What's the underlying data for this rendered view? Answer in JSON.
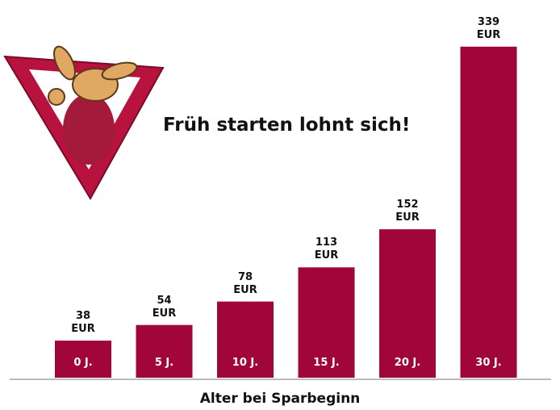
{
  "chart_data": {
    "type": "bar",
    "title": "Früh starten lohnt sich!",
    "x_label": "Alter bei Sparbeginn",
    "categories": [
      "0 J.",
      "5 J.",
      "10 J.",
      "15 J.",
      "20 J.",
      "30 J."
    ],
    "values": [
      38,
      54,
      78,
      113,
      152,
      339
    ],
    "value_labels": [
      "38\nEUR",
      "54\nEUR",
      "78\nEUR",
      "113\nEUR",
      "152\nEUR",
      "339\nEUR"
    ],
    "color": "#a0063a"
  }
}
